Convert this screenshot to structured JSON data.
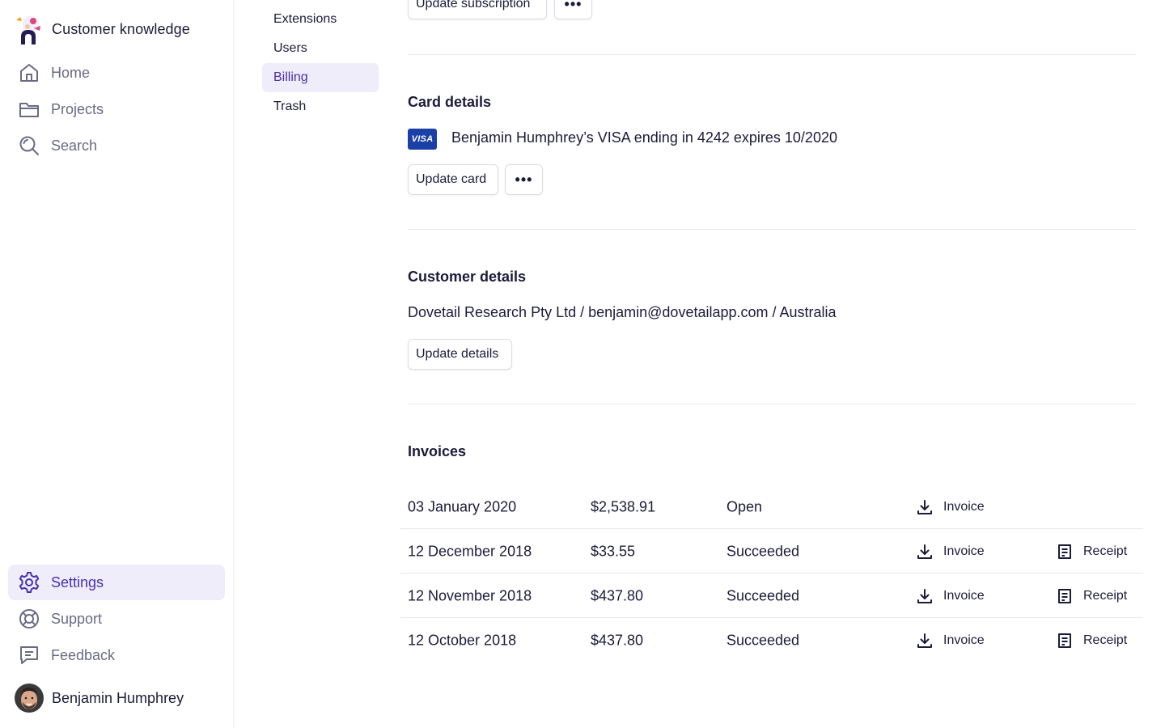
{
  "workspace": {
    "name": "Customer knowledge"
  },
  "nav": {
    "home": "Home",
    "projects": "Projects",
    "search": "Search",
    "settings": "Settings",
    "support": "Support",
    "feedback": "Feedback"
  },
  "user": {
    "name": "Benjamin Humphrey"
  },
  "subnav": {
    "extensions": "Extensions",
    "users": "Users",
    "billing": "Billing",
    "trash": "Trash"
  },
  "subscription": {
    "update_label": "Update subscription",
    "more_label": "•••"
  },
  "card": {
    "title": "Card details",
    "brand": "VISA",
    "description": "Benjamin Humphrey’s VISA ending in 4242 expires 10/2020",
    "update_label": "Update card",
    "more_label": "•••"
  },
  "customer": {
    "title": "Customer details",
    "description": "Dovetail Research Pty Ltd / benjamin@dovetailapp.com / Australia",
    "update_label": "Update details"
  },
  "invoices": {
    "title": "Invoices",
    "invoice_label": "Invoice",
    "receipt_label": "Receipt",
    "rows": [
      {
        "date": "03 January 2020",
        "amount": "$2,538.91",
        "status": "Open",
        "invoice": "Invoice",
        "receipt": ""
      },
      {
        "date": "12 December 2018",
        "amount": "$33.55",
        "status": "Succeeded",
        "invoice": "Invoice",
        "receipt": "Receipt"
      },
      {
        "date": "12 November 2018",
        "amount": "$437.80",
        "status": "Succeeded",
        "invoice": "Invoice",
        "receipt": "Receipt"
      },
      {
        "date": "12 October 2018",
        "amount": "$437.80",
        "status": "Succeeded",
        "invoice": "Invoice",
        "receipt": "Receipt"
      }
    ]
  },
  "colors": {
    "accent": "#4a2fa8",
    "active_bg": "#efedfa",
    "muted": "#6a6a85",
    "visa": "#1a3fa6"
  }
}
